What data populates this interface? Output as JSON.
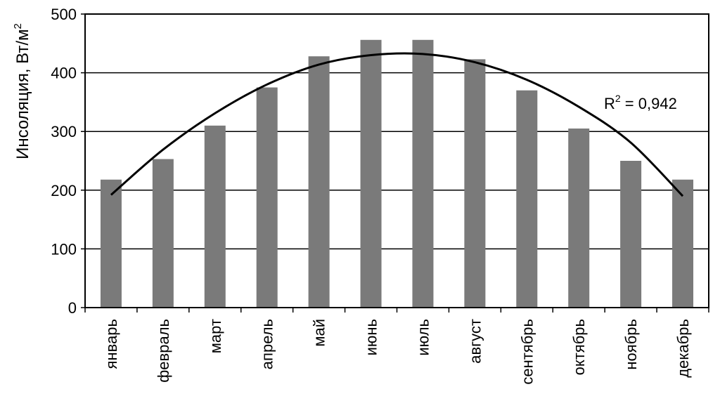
{
  "chart_data": {
    "type": "bar",
    "categories": [
      "январь",
      "февраль",
      "март",
      "апрель",
      "май",
      "июнь",
      "июль",
      "август",
      "сентябрь",
      "октябрь",
      "ноябрь",
      "декабрь"
    ],
    "values": [
      218,
      253,
      310,
      375,
      428,
      456,
      456,
      423,
      370,
      305,
      250,
      218
    ],
    "ylabel_main": "Инсоляция, Вт/м",
    "ylabel_sup": "2",
    "ylim": [
      0,
      500
    ],
    "yticks": [
      0,
      100,
      200,
      300,
      400,
      500
    ],
    "grid": true,
    "bar_color": "#7a7a7a",
    "trendline": {
      "type": "polynomial",
      "values": [
        192,
        269,
        331,
        380,
        414,
        430,
        432,
        418,
        388,
        342,
        281,
        190
      ]
    },
    "annotation": {
      "main": "R",
      "sup": "2",
      "rest": " = 0,942"
    }
  }
}
